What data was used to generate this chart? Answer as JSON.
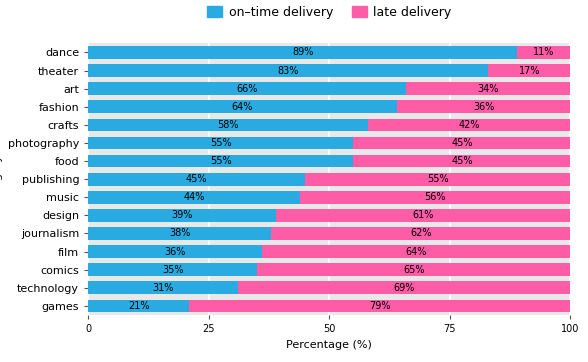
{
  "categories": [
    "dance",
    "theater",
    "art",
    "fashion",
    "crafts",
    "photography",
    "food",
    "publishing",
    "music",
    "design",
    "journalism",
    "film",
    "comics",
    "technology",
    "games"
  ],
  "on_time": [
    89,
    83,
    66,
    64,
    58,
    55,
    55,
    45,
    44,
    39,
    38,
    36,
    35,
    31,
    21
  ],
  "late": [
    11,
    17,
    34,
    36,
    42,
    45,
    45,
    55,
    56,
    61,
    62,
    64,
    65,
    69,
    79
  ],
  "on_time_color": "#29ABE2",
  "late_color": "#FF5CA8",
  "xlabel": "Percentage (%)",
  "xticks": [
    0,
    25,
    50,
    75,
    100
  ],
  "legend_on_time": "on–time delivery",
  "legend_late": "late delivery",
  "bar_height": 0.7,
  "background_color": "#E8E8E8",
  "grid_color": "#FFFFFF",
  "text_color": "#000000",
  "font_size_labels": 8,
  "font_size_ticks": 7,
  "font_size_legend": 9,
  "font_size_bar_text": 7
}
